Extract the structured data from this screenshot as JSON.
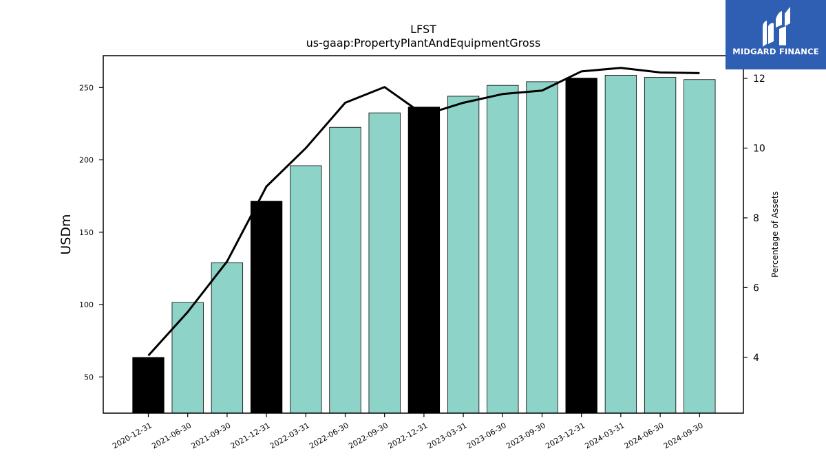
{
  "chart_data": {
    "type": "bar",
    "title": "LFST",
    "subtitle": "us-gaap:PropertyPlantAndEquipmentGross",
    "ylabel": "USDm",
    "y2label": "Percentage of Assets",
    "categories": [
      "2020-12-31",
      "2021-06-30",
      "2021-09-30",
      "2021-12-31",
      "2022-03-31",
      "2022-06-30",
      "2022-09-30",
      "2022-12-31",
      "2023-03-31",
      "2023-06-30",
      "2023-09-30",
      "2023-12-31",
      "2024-03-31",
      "2024-06-30",
      "2024-09-30"
    ],
    "values": [
      63.5,
      101.5,
      129,
      171.5,
      196,
      222.5,
      232.5,
      236.5,
      244,
      251.5,
      254,
      256.5,
      258.5,
      257,
      255.5
    ],
    "bar_colors": [
      "#000000",
      "#8dd3c7",
      "#8dd3c7",
      "#000000",
      "#8dd3c7",
      "#8dd3c7",
      "#8dd3c7",
      "#000000",
      "#8dd3c7",
      "#8dd3c7",
      "#8dd3c7",
      "#000000",
      "#8dd3c7",
      "#8dd3c7",
      "#8dd3c7"
    ],
    "line_series": {
      "axis": "right",
      "values": [
        4.05,
        5.3,
        6.75,
        8.9,
        10.0,
        11.3,
        11.75,
        10.95,
        11.3,
        11.55,
        11.65,
        12.2,
        12.3,
        12.17,
        12.15
      ]
    },
    "ylim": [
      25,
      272
    ],
    "y2lim": [
      2.4,
      12.65
    ],
    "yticks": [
      50,
      100,
      150,
      200,
      250
    ],
    "y2ticks": [
      4,
      6,
      8,
      10,
      12
    ],
    "grid": false,
    "colors": {
      "annual_bar": "#000000",
      "quarter_bar": "#8dd3c7",
      "line": "#000000"
    }
  },
  "logo": {
    "text": "MIDGARD FINANCE",
    "background": "#2f5fb3"
  }
}
